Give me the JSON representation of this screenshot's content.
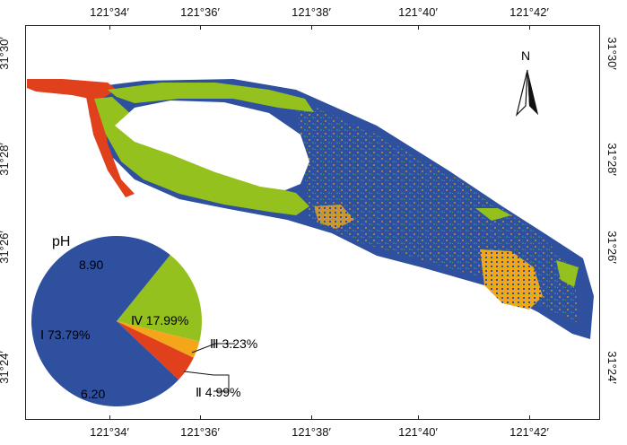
{
  "axes": {
    "top_lon": [
      "121°34′",
      "121°36′",
      "121°38′",
      "121°40′",
      "121°42′"
    ],
    "bottom_lon": [
      "121°34′",
      "121°36′",
      "121°38′",
      "121°40′",
      "121°42′"
    ],
    "left_lat": [
      "31°30′",
      "31°28′",
      "31°26′",
      "31°24′"
    ],
    "right_lat": [
      "31°30′",
      "31°28′",
      "31°26′",
      "31°24′"
    ]
  },
  "north_label": "N",
  "legend": {
    "title": "pH",
    "top_value": "8.90",
    "bottom_value": "6.20",
    "classes": [
      {
        "label": "Ⅰ 73.79%",
        "percent": 73.79,
        "color": "#2f4f9f"
      },
      {
        "label": "Ⅱ 4.99%",
        "percent": 4.99,
        "color": "#e0401c"
      },
      {
        "label": "Ⅲ 3.23%",
        "percent": 3.23,
        "color": "#f5a51a"
      },
      {
        "label": "Ⅳ 17.99%",
        "percent": 17.99,
        "color": "#95c11f"
      }
    ]
  },
  "colors": {
    "class1": "#2f4f9f",
    "class2": "#e0401c",
    "class3": "#f5a51a",
    "class4": "#95c11f",
    "lake": "#ffffff"
  }
}
